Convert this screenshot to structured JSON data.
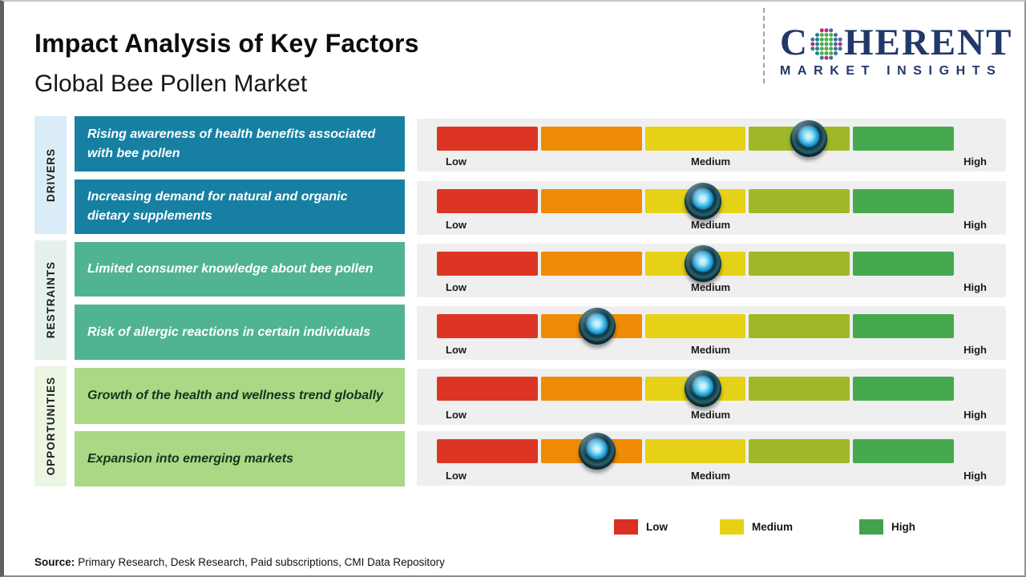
{
  "slide": {
    "title": "Impact Analysis of Key Factors",
    "subtitle": "Global Bee Pollen Market"
  },
  "logo": {
    "part1": "C",
    "part2": "HERENT",
    "tagline": "MARKET INSIGHTS",
    "color": "#21386b"
  },
  "scale": {
    "low": "Low",
    "medium": "Medium",
    "high": "High"
  },
  "groups": [
    {
      "label": "DRIVERS",
      "color": "#1780a2",
      "factors": [
        {
          "text": "Rising awareness of health benefits associated with bee pollen",
          "impact_percent": 72
        },
        {
          "text": "Increasing demand for natural and organic dietary supplements",
          "impact_percent": 51.5
        }
      ]
    },
    {
      "label": "RESTRAINTS",
      "color": "#50b394",
      "factors": [
        {
          "text": "Limited consumer knowledge about bee pollen",
          "impact_percent": 51.5
        },
        {
          "text": "Risk of allergic reactions in certain individuals",
          "impact_percent": 31
        }
      ]
    },
    {
      "label": "OPPORTUNITIES",
      "color": "#aad884",
      "factors": [
        {
          "text": "Growth of the health and wellness trend globally",
          "impact_percent": 51.5
        },
        {
          "text": "Expansion into emerging markets",
          "impact_percent": 31
        }
      ]
    }
  ],
  "gauge": {
    "segment_colors": [
      "#dd3524",
      "#ef8b04",
      "#e5d117",
      "#9fb827",
      "#47a94d"
    ],
    "knob_colors": {
      "ring": "#123f49",
      "center": "#2fb3e8"
    }
  },
  "legend": {
    "items": [
      {
        "label": "Low",
        "color": "#da3023"
      },
      {
        "label": "Medium",
        "color": "#e6d213"
      },
      {
        "label": "High",
        "color": "#43a24c"
      }
    ]
  },
  "source": {
    "label": "Source:",
    "text": "Primary Research, Desk Research, Paid subscriptions, CMI Data Repository"
  },
  "chart_data": {
    "type": "gauge",
    "title": "Impact Analysis of Key Factors",
    "subtitle": "Global Bee Pollen Market",
    "scale": {
      "range": [
        0,
        100
      ],
      "tick_labels": [
        "Low",
        "Medium",
        "High"
      ],
      "segments": 5
    },
    "rows": [
      {
        "category": "Drivers",
        "factor": "Rising awareness of health benefits associated with bee pollen",
        "impact_percent": 72,
        "impact_level": "Medium-High"
      },
      {
        "category": "Drivers",
        "factor": "Increasing demand for natural and organic dietary supplements",
        "impact_percent": 52,
        "impact_level": "Medium"
      },
      {
        "category": "Restraints",
        "factor": "Limited consumer knowledge about bee pollen",
        "impact_percent": 52,
        "impact_level": "Medium"
      },
      {
        "category": "Restraints",
        "factor": "Risk of allergic reactions in certain individuals",
        "impact_percent": 31,
        "impact_level": "Low-Medium"
      },
      {
        "category": "Opportunities",
        "factor": "Growth of the health and wellness trend globally",
        "impact_percent": 52,
        "impact_level": "Medium"
      },
      {
        "category": "Opportunities",
        "factor": "Expansion into emerging markets",
        "impact_percent": 31,
        "impact_level": "Low-Medium"
      }
    ],
    "legend_entries": [
      "Low",
      "Medium",
      "High"
    ],
    "legend_position": "bottom-right"
  }
}
